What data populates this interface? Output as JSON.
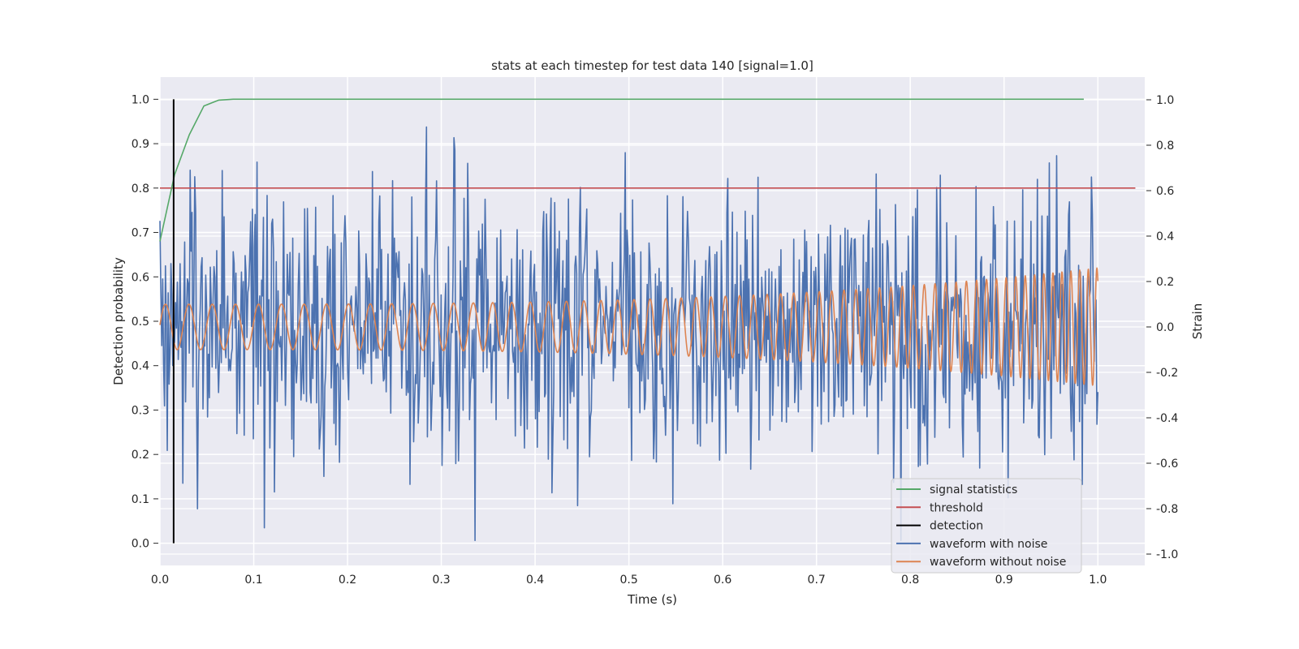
{
  "chart_data": {
    "type": "line",
    "title": "stats at each timestep for test data 140 [signal=1.0]",
    "xlabel": "Time (s)",
    "ylabel_left": "Detection probability",
    "ylabel_right": "Strain",
    "xlim": [
      0.0,
      1.05
    ],
    "ylim_left": [
      -0.05,
      1.05
    ],
    "ylim_right": [
      -1.05,
      1.1
    ],
    "grid": true,
    "legend_position": "lower-right",
    "x_ticks": [
      "0.0",
      "0.1",
      "0.2",
      "0.3",
      "0.4",
      "0.5",
      "0.6",
      "0.7",
      "0.8",
      "0.9",
      "1.0"
    ],
    "y_left_ticks": [
      "0.0",
      "0.1",
      "0.2",
      "0.3",
      "0.4",
      "0.5",
      "0.6",
      "0.7",
      "0.8",
      "0.9",
      "1.0"
    ],
    "y_right_ticks": [
      "-1.0",
      "-0.8",
      "-0.6",
      "-0.4",
      "-0.2",
      "0.0",
      "0.2",
      "0.4",
      "0.6",
      "0.8",
      "1.0"
    ],
    "series": [
      {
        "name": "signal statistics",
        "axis": "left",
        "color": "#55a868",
        "x": [
          0.0,
          0.0156,
          0.0313,
          0.0469,
          0.0625,
          0.0781,
          0.0938,
          0.125,
          0.25,
          0.5,
          0.75,
          0.985
        ],
        "y": [
          0.68,
          0.83,
          0.92,
          0.985,
          0.998,
          1.0,
          1.0,
          1.0,
          1.0,
          1.0,
          1.0,
          1.0
        ]
      },
      {
        "name": "threshold",
        "axis": "left",
        "color": "#c44e52",
        "x": [
          0.0,
          1.04
        ],
        "y": [
          0.8,
          0.8
        ]
      },
      {
        "name": "detection",
        "axis": "left",
        "color": "#000000",
        "x": [
          0.0146,
          0.0146
        ],
        "y": [
          0.0,
          1.0
        ]
      },
      {
        "name": "waveform with noise",
        "axis": "right",
        "color": "#4c72b0",
        "x_range": [
          0.0,
          1.0
        ],
        "approx_amplitude": 0.9
      },
      {
        "name": "waveform without noise",
        "axis": "right",
        "color": "#dd8452",
        "x_range": [
          0.0,
          1.0
        ],
        "envelope_start": 0.1,
        "envelope_end": 0.26,
        "frequency_start_hz": 40,
        "frequency_end_hz": 110
      }
    ]
  }
}
